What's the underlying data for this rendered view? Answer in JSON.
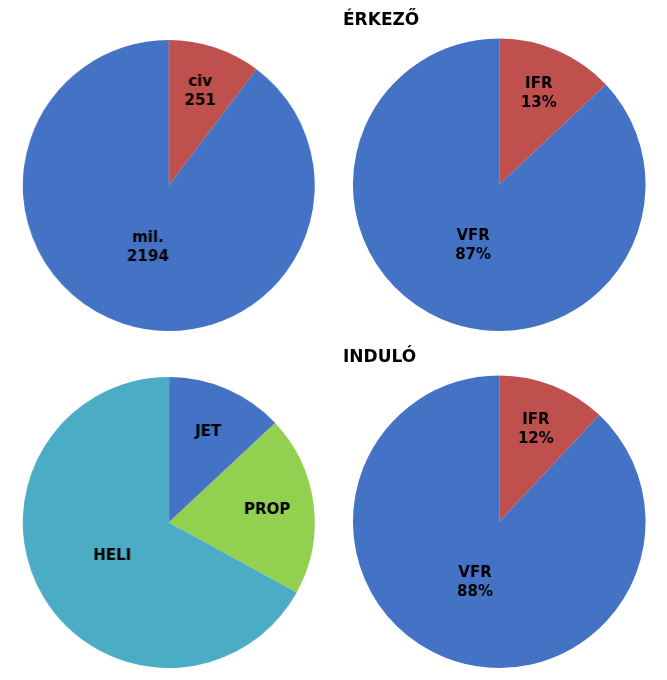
{
  "chart_data": [
    {
      "type": "pie",
      "categories": [
        "civ",
        "mil."
      ],
      "values": [
        251,
        2194
      ],
      "colors": [
        "#c0504d",
        "#4472c4"
      ],
      "data_labels": true
    },
    {
      "type": "pie",
      "title": "ÉRKEZŐ",
      "categories": [
        "IFR",
        "VFR"
      ],
      "values": [
        13,
        87
      ],
      "value_labels": [
        "13%",
        "87%"
      ],
      "colors": [
        "#c0504d",
        "#4472c4"
      ],
      "data_labels": true
    },
    {
      "type": "pie",
      "categories": [
        "JET",
        "PROP",
        "HELI"
      ],
      "values": [
        13,
        20,
        67
      ],
      "colors": [
        "#4472c4",
        "#92d050",
        "#4bacc6"
      ],
      "data_labels": false
    },
    {
      "type": "pie",
      "title": "INDULÓ",
      "categories": [
        "IFR",
        "VFR"
      ],
      "values": [
        12,
        88
      ],
      "value_labels": [
        "12%",
        "88%"
      ],
      "colors": [
        "#c0504d",
        "#4472c4"
      ],
      "data_labels": true
    }
  ]
}
